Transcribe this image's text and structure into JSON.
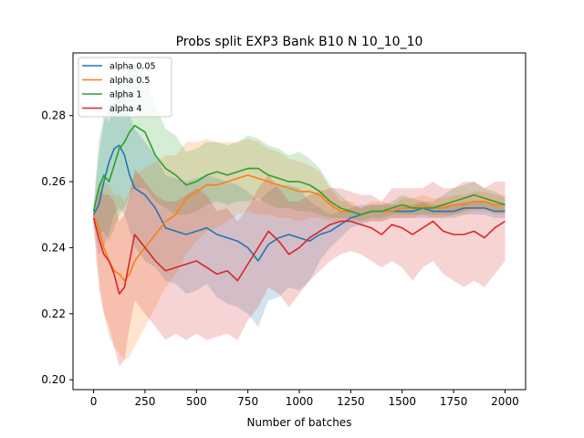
{
  "chart_data": {
    "type": "line",
    "title": "Probs split EXP3 Bank B10 N 10_10_10",
    "xlabel": "Number of batches",
    "ylabel": "",
    "xlim": [
      -100,
      2100
    ],
    "ylim": [
      0.197,
      0.299
    ],
    "x_ticks": [
      0,
      250,
      500,
      750,
      1000,
      1250,
      1500,
      1750,
      2000
    ],
    "y_ticks": [
      0.2,
      0.22,
      0.24,
      0.26,
      0.28
    ],
    "x_tick_labels": [
      "0",
      "250",
      "500",
      "750",
      "1000",
      "1250",
      "1500",
      "1750",
      "2000"
    ],
    "y_tick_labels": [
      "0.20",
      "0.22",
      "0.24",
      "0.26",
      "0.28"
    ],
    "grid": false,
    "legend": "top-left",
    "x": [
      0,
      25,
      50,
      75,
      100,
      125,
      150,
      175,
      200,
      250,
      300,
      350,
      400,
      450,
      500,
      550,
      600,
      650,
      700,
      750,
      800,
      850,
      900,
      950,
      1000,
      1050,
      1100,
      1150,
      1200,
      1250,
      1300,
      1350,
      1400,
      1450,
      1500,
      1550,
      1600,
      1650,
      1700,
      1750,
      1800,
      1850,
      1900,
      1950,
      2000
    ],
    "series": [
      {
        "name": "alpha 0.05",
        "color": "#1f77b4",
        "values": [
          0.25,
          0.253,
          0.26,
          0.266,
          0.27,
          0.271,
          0.268,
          0.262,
          0.258,
          0.256,
          0.252,
          0.246,
          0.245,
          0.244,
          0.245,
          0.246,
          0.244,
          0.243,
          0.242,
          0.24,
          0.236,
          0.241,
          0.243,
          0.244,
          0.243,
          0.242,
          0.244,
          0.245,
          0.247,
          0.249,
          0.25,
          0.251,
          0.251,
          0.251,
          0.251,
          0.251,
          0.252,
          0.251,
          0.251,
          0.251,
          0.252,
          0.252,
          0.252,
          0.251,
          0.251
        ],
        "lower": [
          0.248,
          0.238,
          0.24,
          0.245,
          0.25,
          0.252,
          0.25,
          0.245,
          0.24,
          0.236,
          0.234,
          0.23,
          0.229,
          0.226,
          0.227,
          0.229,
          0.225,
          0.223,
          0.222,
          0.22,
          0.216,
          0.224,
          0.225,
          0.228,
          0.227,
          0.23,
          0.236,
          0.24,
          0.243,
          0.246,
          0.247,
          0.248,
          0.248,
          0.249,
          0.249,
          0.249,
          0.249,
          0.249,
          0.249,
          0.249,
          0.25,
          0.25,
          0.25,
          0.249,
          0.249
        ],
        "upper": [
          0.252,
          0.268,
          0.278,
          0.284,
          0.287,
          0.288,
          0.286,
          0.28,
          0.276,
          0.272,
          0.268,
          0.262,
          0.261,
          0.26,
          0.261,
          0.262,
          0.261,
          0.26,
          0.259,
          0.257,
          0.254,
          0.257,
          0.259,
          0.259,
          0.258,
          0.254,
          0.252,
          0.25,
          0.251,
          0.252,
          0.253,
          0.253,
          0.253,
          0.253,
          0.253,
          0.253,
          0.254,
          0.253,
          0.253,
          0.253,
          0.254,
          0.254,
          0.254,
          0.253,
          0.253
        ]
      },
      {
        "name": "alpha 0.5",
        "color": "#ff7f0e",
        "values": [
          0.25,
          0.246,
          0.24,
          0.236,
          0.233,
          0.232,
          0.23,
          0.232,
          0.236,
          0.24,
          0.244,
          0.248,
          0.25,
          0.255,
          0.257,
          0.259,
          0.259,
          0.26,
          0.261,
          0.262,
          0.261,
          0.26,
          0.259,
          0.258,
          0.257,
          0.257,
          0.256,
          0.253,
          0.251,
          0.251,
          0.25,
          0.251,
          0.251,
          0.251,
          0.252,
          0.252,
          0.253,
          0.252,
          0.252,
          0.253,
          0.253,
          0.254,
          0.254,
          0.253,
          0.253
        ],
        "lower": [
          0.248,
          0.232,
          0.22,
          0.213,
          0.21,
          0.208,
          0.206,
          0.207,
          0.21,
          0.216,
          0.222,
          0.228,
          0.232,
          0.238,
          0.242,
          0.245,
          0.246,
          0.248,
          0.25,
          0.251,
          0.25,
          0.25,
          0.249,
          0.249,
          0.248,
          0.249,
          0.249,
          0.248,
          0.248,
          0.248,
          0.248,
          0.248,
          0.248,
          0.249,
          0.249,
          0.249,
          0.25,
          0.249,
          0.249,
          0.25,
          0.25,
          0.251,
          0.251,
          0.25,
          0.25
        ],
        "upper": [
          0.252,
          0.26,
          0.26,
          0.259,
          0.256,
          0.256,
          0.254,
          0.257,
          0.262,
          0.264,
          0.266,
          0.268,
          0.268,
          0.272,
          0.272,
          0.273,
          0.272,
          0.272,
          0.272,
          0.273,
          0.272,
          0.27,
          0.269,
          0.267,
          0.266,
          0.265,
          0.263,
          0.258,
          0.254,
          0.254,
          0.252,
          0.254,
          0.254,
          0.253,
          0.255,
          0.255,
          0.256,
          0.255,
          0.255,
          0.256,
          0.256,
          0.257,
          0.257,
          0.256,
          0.256
        ]
      },
      {
        "name": "alpha 1",
        "color": "#2ca02c",
        "values": [
          0.251,
          0.258,
          0.262,
          0.26,
          0.265,
          0.27,
          0.272,
          0.275,
          0.277,
          0.275,
          0.268,
          0.264,
          0.262,
          0.259,
          0.26,
          0.262,
          0.263,
          0.262,
          0.263,
          0.264,
          0.264,
          0.262,
          0.261,
          0.26,
          0.26,
          0.259,
          0.257,
          0.254,
          0.252,
          0.251,
          0.25,
          0.251,
          0.251,
          0.252,
          0.253,
          0.252,
          0.252,
          0.252,
          0.253,
          0.254,
          0.255,
          0.256,
          0.255,
          0.254,
          0.253
        ],
        "lower": [
          0.249,
          0.244,
          0.245,
          0.242,
          0.246,
          0.25,
          0.252,
          0.256,
          0.258,
          0.258,
          0.254,
          0.252,
          0.25,
          0.25,
          0.251,
          0.253,
          0.254,
          0.253,
          0.254,
          0.254,
          0.255,
          0.253,
          0.252,
          0.252,
          0.251,
          0.251,
          0.25,
          0.249,
          0.249,
          0.249,
          0.248,
          0.249,
          0.249,
          0.25,
          0.25,
          0.25,
          0.25,
          0.25,
          0.25,
          0.25,
          0.251,
          0.252,
          0.252,
          0.251,
          0.251
        ],
        "upper": [
          0.253,
          0.272,
          0.28,
          0.278,
          0.284,
          0.29,
          0.292,
          0.294,
          0.296,
          0.292,
          0.283,
          0.276,
          0.274,
          0.269,
          0.27,
          0.272,
          0.272,
          0.271,
          0.272,
          0.274,
          0.273,
          0.271,
          0.27,
          0.268,
          0.269,
          0.267,
          0.264,
          0.259,
          0.256,
          0.253,
          0.252,
          0.253,
          0.253,
          0.254,
          0.256,
          0.255,
          0.254,
          0.254,
          0.256,
          0.258,
          0.259,
          0.26,
          0.258,
          0.257,
          0.255
        ]
      },
      {
        "name": "alpha 4",
        "color": "#d62728",
        "values": [
          0.249,
          0.243,
          0.238,
          0.236,
          0.232,
          0.226,
          0.228,
          0.236,
          0.244,
          0.24,
          0.236,
          0.233,
          0.234,
          0.235,
          0.236,
          0.234,
          0.232,
          0.233,
          0.23,
          0.235,
          0.24,
          0.245,
          0.242,
          0.238,
          0.24,
          0.243,
          0.245,
          0.247,
          0.248,
          0.248,
          0.247,
          0.246,
          0.244,
          0.247,
          0.246,
          0.244,
          0.246,
          0.248,
          0.245,
          0.244,
          0.244,
          0.245,
          0.243,
          0.246,
          0.248
        ],
        "lower": [
          0.247,
          0.228,
          0.22,
          0.216,
          0.21,
          0.204,
          0.206,
          0.216,
          0.224,
          0.22,
          0.216,
          0.212,
          0.214,
          0.212,
          0.214,
          0.212,
          0.213,
          0.214,
          0.212,
          0.218,
          0.222,
          0.228,
          0.226,
          0.222,
          0.226,
          0.23,
          0.233,
          0.236,
          0.238,
          0.239,
          0.238,
          0.236,
          0.234,
          0.236,
          0.234,
          0.23,
          0.234,
          0.236,
          0.232,
          0.23,
          0.228,
          0.23,
          0.228,
          0.232,
          0.236
        ],
        "upper": [
          0.251,
          0.258,
          0.256,
          0.256,
          0.254,
          0.248,
          0.25,
          0.256,
          0.264,
          0.26,
          0.256,
          0.254,
          0.254,
          0.256,
          0.258,
          0.256,
          0.251,
          0.252,
          0.248,
          0.252,
          0.258,
          0.262,
          0.258,
          0.254,
          0.254,
          0.256,
          0.257,
          0.258,
          0.258,
          0.257,
          0.256,
          0.256,
          0.254,
          0.258,
          0.258,
          0.258,
          0.258,
          0.26,
          0.258,
          0.258,
          0.26,
          0.26,
          0.258,
          0.26,
          0.26
        ]
      }
    ]
  }
}
